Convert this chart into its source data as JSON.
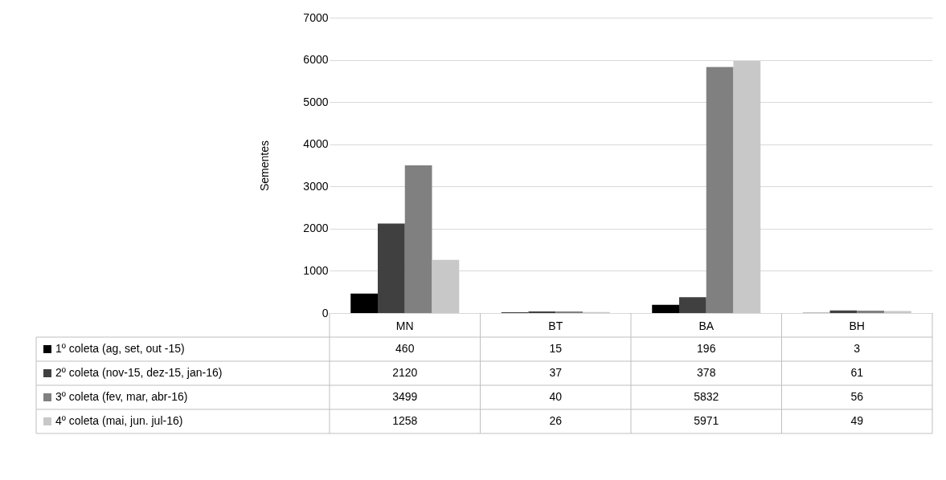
{
  "chart_data": {
    "type": "bar",
    "ylabel": "Sementes",
    "categories": [
      "MN",
      "BT",
      "BA",
      "BH"
    ],
    "series": [
      {
        "name": "1º coleta (ag, set, out -15)",
        "color": "#000000",
        "values": [
          460,
          15,
          196,
          3
        ]
      },
      {
        "name": "2º coleta (nov-15, dez-15, jan-16)",
        "color": "#404040",
        "values": [
          2120,
          37,
          378,
          61
        ]
      },
      {
        "name": "3º coleta (fev, mar, abr-16)",
        "color": "#808080",
        "values": [
          3499,
          40,
          5832,
          56
        ]
      },
      {
        "name": "4º coleta (mai, jun. jul-16)",
        "color": "#c8c8c8",
        "values": [
          1258,
          26,
          5971,
          49
        ]
      }
    ],
    "ylim": [
      0,
      7000
    ],
    "yticks": [
      0,
      1000,
      2000,
      3000,
      4000,
      5000,
      6000,
      7000
    ],
    "grid": "y",
    "legend": "bottom",
    "data_labels": true
  }
}
